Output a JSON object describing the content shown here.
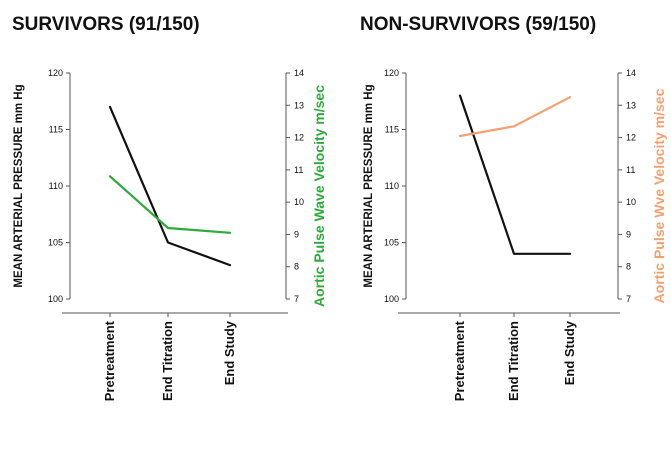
{
  "chart_data": [
    {
      "type": "line",
      "title": "SURVIVORS (91/150)",
      "categories": [
        "Pretreatment",
        "End Titration",
        "End Study"
      ],
      "ylabel": "MEAN ARTERIAL PRESSURE mm Hg",
      "ylim": [
        100,
        120
      ],
      "yticks": [
        100,
        105,
        110,
        115,
        120
      ],
      "y2label": "Aortic Pulse Wave Velocity m/sec",
      "y2lim": [
        7,
        14
      ],
      "y2ticks": [
        7,
        8,
        9,
        10,
        11,
        12,
        13,
        14
      ],
      "series": [
        {
          "axis": "left",
          "color": "#111111",
          "values": [
            117,
            105,
            103
          ]
        },
        {
          "axis": "right",
          "color": "#2eaa3a",
          "values": [
            10.8,
            9.2,
            9.05
          ]
        }
      ],
      "label_color": "#2eaa3a",
      "grid": false
    },
    {
      "type": "line",
      "title": "NON-SURVIVORS (59/150)",
      "categories": [
        "Pretreatment",
        "End Titration",
        "End Study"
      ],
      "ylabel": "MEAN ARTERIAL PRESSURE mm Hg",
      "ylim": [
        100,
        120
      ],
      "yticks": [
        100,
        105,
        110,
        115,
        120
      ],
      "y2label": "Aortic Pulse Wve Velocity m/sec",
      "y2lim": [
        7,
        14
      ],
      "y2ticks": [
        7,
        8,
        9,
        10,
        11,
        12,
        13,
        14
      ],
      "series": [
        {
          "axis": "left",
          "color": "#111111",
          "values": [
            118,
            104,
            104
          ]
        },
        {
          "axis": "right",
          "color": "#f4a070",
          "values": [
            12.05,
            12.35,
            13.25
          ]
        }
      ],
      "label_color": "#f4a070",
      "grid": false
    }
  ]
}
